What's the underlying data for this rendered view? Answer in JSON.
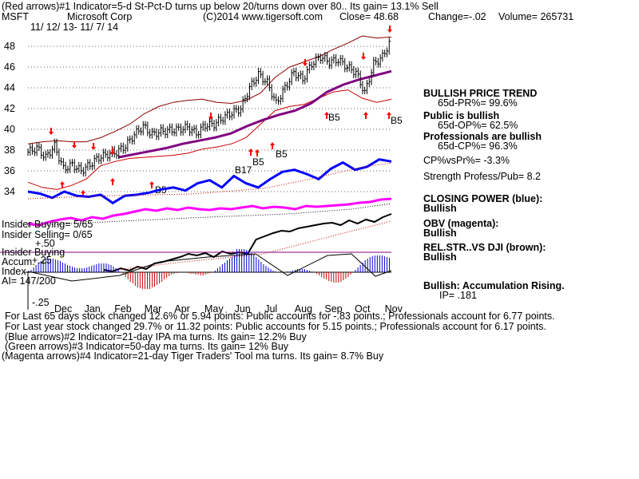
{
  "header": {
    "line1": "(Red arrows)#1 Indicator=5-d St-Pct-D turns up below 20/turns down over 80.. Its gain= 13.1% Sell",
    "ticker": "MSFT",
    "company": "Microsoft Corp",
    "copyright": "(C)2014 www.tigersoft.com",
    "close_text": "Close=  48.68",
    "change_text": "Change=-.02",
    "volume_text": "Volume= 265731",
    "date_range": "11/ 12/ 13- 11/ 7/ 14"
  },
  "left_labels": {
    "insider_buying_count": "Insider Buying= 5/65",
    "insider_selling_count": "Insider Selling= 0/65",
    "insider_buying": "Insider Buying",
    "accum_index_1": "Accum.",
    "accum_index_2": "Index",
    "ai_value": "AI= 147/200",
    "accum_plus": "+.25",
    "accum_plus2": "+.50",
    "accum_minus": "-.25"
  },
  "side_panel": {
    "trend_title": "BULLISH PRICE TREND",
    "pr_pct": "65d-PR%= 99.6%",
    "public_title": "Public is bullish",
    "op_pct": "65d-OP%= 62.5%",
    "prof_title": "Professionals are bullish",
    "cp_pct": "65d-CP%= 96.3%",
    "cpvspr": "CP%vsPr%= -3.3%",
    "strength": "Strength Profess/Pub= 8.2",
    "closing_power_title": "CLOSING POWER (blue):",
    "closing_power_state": "Bullish",
    "obv_title": "OBV (magenta):",
    "obv_state": "Bullish",
    "relstr_title": "REL.STR..VS DJI (brown):",
    "relstr_state": "Bullish",
    "accum_title": "Bullish: Accumulation Rising.",
    "ip_value": "IP=  .181"
  },
  "footer": {
    "line1": "For Last 65 days stock changed  12.6% or  5.94 points:  Public accounts for -.83 points.;  Professionals account for  6.77 points.",
    "line2": "For Last year stock changed  29.7% or  11.32 points:  Public accounts for  5.15 points.;  Professionals account for  6.17 points.",
    "line3": "(Blue arrows)#2 Indicator=21-day IPA ma turns. Its gain= 12.2% Buy",
    "line4": "(Green arrows)#3 Indicator=50-day ma turns. Its gain= 12% Buy",
    "line5": "(Magenta arrows)#4 Indicator=21-day Tiger Traders' Tool ma turns. Its gain= 8.7% Buy"
  },
  "colors": {
    "price_bars": "#000000",
    "upper_band": "#8b0000",
    "lower_band": "#cc0000",
    "ma50": "#800080",
    "closing_power": "#0000ff",
    "obv": "#ff00ff",
    "rel_str": "#000000",
    "accum_pos": "#0000cc",
    "accum_neg": "#cc0000",
    "arrow_red": "#ff0000",
    "grid_dots": "#666666"
  },
  "chart_data": {
    "type": "line",
    "title": "",
    "x_months": [
      "Dec",
      "Jan",
      "Feb",
      "Mar",
      "Apr",
      "May",
      "Jun",
      "Jul",
      "Aug",
      "Sep",
      "Oct",
      "Nov"
    ],
    "y_ticks": [
      48,
      46,
      44,
      42,
      40,
      38,
      36,
      34
    ],
    "ylim": [
      33,
      49
    ],
    "price_close": [
      37.8,
      38.2,
      37.3,
      38.4,
      36.2,
      36.6,
      36.0,
      36.6,
      37.3,
      37.6,
      37.8,
      38.4,
      39.5,
      40.3,
      39.5,
      39.8,
      39.9,
      40.0,
      40.2,
      39.6,
      40.4,
      40.5,
      41.1,
      41.6,
      42.0,
      44.0,
      45.3,
      44.5,
      42.5,
      44.0,
      45.5,
      44.8,
      46.3,
      47.0,
      46.5,
      46.7,
      46.0,
      45.5,
      43.5,
      46.3,
      47.0,
      48.7
    ],
    "upper_band": [
      38.6,
      38.8,
      38.9,
      38.8,
      38.8,
      39.2,
      39.8,
      40.5,
      41.5,
      42.2,
      42.6,
      42.8,
      42.9,
      42.6,
      42.5,
      42.8,
      43.5,
      45.0,
      46.0,
      46.5,
      47.0,
      47.7,
      48.3,
      49.0,
      48.8,
      48.9
    ],
    "lower_band": [
      34.9,
      34.4,
      34.2,
      34.6,
      35.2,
      36.5,
      36.9,
      37.2,
      37.3,
      37.4,
      37.5,
      37.7,
      38.1,
      38.3,
      38.6,
      39.2,
      40.5,
      41.8,
      42.2,
      42.4,
      43.0,
      43.6,
      43.8,
      43.0,
      42.6,
      42.9
    ],
    "ma50": [
      37.3,
      37.6,
      37.9,
      38.2,
      38.6,
      38.9,
      39.2,
      39.6,
      40.3,
      40.9,
      41.4,
      41.8,
      42.5,
      43.6,
      44.3,
      44.8,
      45.2,
      45.6
    ],
    "closing_power": [
      34.4,
      34.2,
      33.8,
      34.4,
      34.0,
      33.9,
      34.1,
      33.3,
      34.0,
      34.1,
      34.3,
      34.6,
      34.8,
      34.5,
      35.2,
      35.5,
      34.8,
      35.9,
      35.2,
      34.8,
      35.6,
      36.3,
      36.5,
      36.1,
      35.6,
      36.6,
      37.2,
      36.5,
      36.8,
      37.5,
      37.3
    ],
    "arrows": {
      "sell_red": [
        "late Nov",
        "Dec",
        "Jan",
        "Feb",
        "May",
        "Aug",
        "Sep",
        "Oct",
        "Nov"
      ],
      "buy_red": [
        "Dec",
        "Jan",
        "Jan",
        "Mar",
        "Jun",
        "Jul",
        "Sep",
        "Oct",
        "Nov"
      ]
    },
    "buy_labels": [
      "B17",
      "B5",
      "B5",
      "B5",
      "B5",
      "B5"
    ],
    "insider_buying": "5/65",
    "insider_selling": "0/65",
    "accum_index": "AI= 147/200",
    "grid": true
  }
}
